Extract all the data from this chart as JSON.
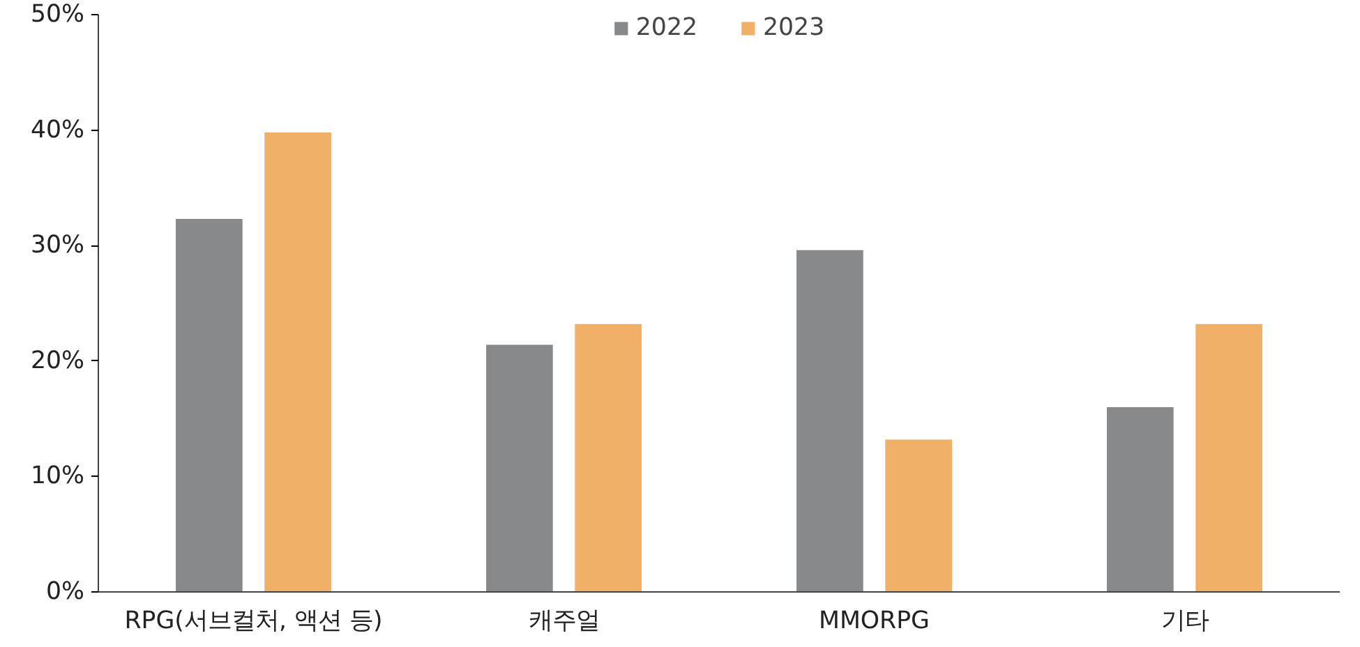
{
  "chart_data": {
    "type": "bar",
    "categories": [
      "RPG(서브컬처, 액션 등)",
      "캐주얼",
      "MMORPG",
      "기타"
    ],
    "series": [
      {
        "name": "2022",
        "color": "#87898b",
        "values": [
          32.3,
          21.4,
          29.6,
          16.0
        ]
      },
      {
        "name": "2023",
        "color": "#f0b068",
        "values": [
          39.8,
          23.2,
          13.2,
          23.2
        ]
      }
    ],
    "ylim": [
      0,
      50
    ],
    "yticks": [
      {
        "value": 0,
        "label": "0%"
      },
      {
        "value": 10,
        "label": "10%"
      },
      {
        "value": 20,
        "label": "20%"
      },
      {
        "value": 30,
        "label": "30%"
      },
      {
        "value": 40,
        "label": "40%"
      },
      {
        "value": 50,
        "label": "50%"
      }
    ],
    "grid": false,
    "legend": "top"
  }
}
